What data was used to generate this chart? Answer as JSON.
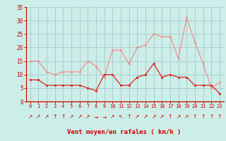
{
  "x": [
    0,
    1,
    2,
    3,
    4,
    5,
    6,
    7,
    8,
    9,
    10,
    11,
    12,
    13,
    14,
    15,
    16,
    17,
    18,
    19,
    20,
    21,
    22,
    23
  ],
  "wind_avg": [
    8,
    8,
    6,
    6,
    6,
    6,
    6,
    5,
    4,
    10,
    10,
    6,
    6,
    9,
    10,
    14,
    9,
    10,
    9,
    9,
    6,
    6,
    6,
    3
  ],
  "wind_gust": [
    15,
    15,
    11,
    10,
    11,
    11,
    11,
    15,
    13,
    9,
    19,
    19,
    14,
    20,
    21,
    25,
    24,
    24,
    16,
    31,
    22,
    14,
    5,
    7
  ],
  "arrows": [
    "↗",
    "↗",
    "↗",
    "↑",
    "↑",
    "↗",
    "↗",
    "↗",
    "→",
    "→",
    "↗",
    "↖",
    "↑",
    "↗",
    "↗",
    "↗",
    "↗",
    "↑",
    "↗",
    "↗",
    "↑",
    "↑",
    "↑",
    "↑"
  ],
  "bg_color": "#cceee8",
  "grid_color": "#aacccc",
  "line_avg_color": "#dd2222",
  "line_gust_color": "#f09090",
  "xlabel": "Vent moyen/en rafales ( km/h )",
  "xlabel_color": "#cc0000",
  "tick_color": "#cc0000",
  "arrow_color": "#cc0000",
  "ylim": [
    0,
    35
  ],
  "yticks": [
    0,
    5,
    10,
    15,
    20,
    25,
    30,
    35
  ],
  "spine_color": "#cc0000"
}
